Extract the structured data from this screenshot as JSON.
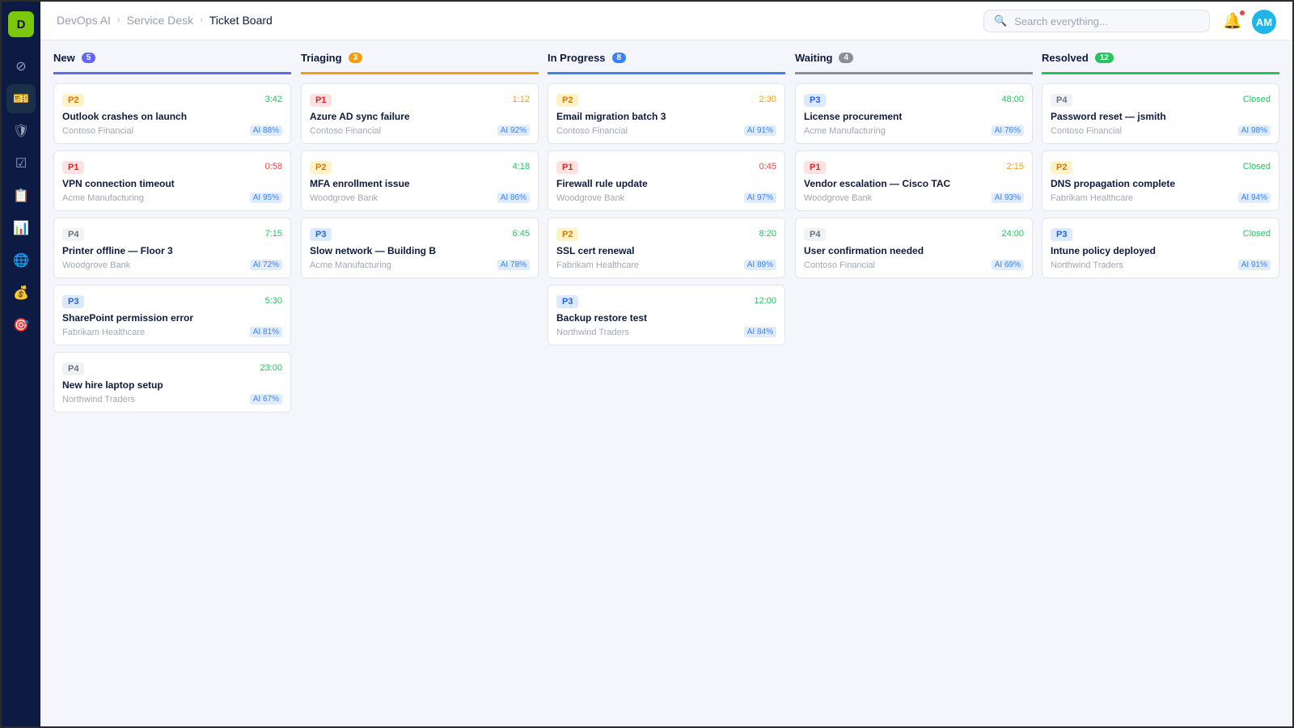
{
  "app": {
    "logo_letter": "D"
  },
  "breadcrumb": [
    "DevOps AI",
    "Service Desk",
    "Ticket Board"
  ],
  "search": {
    "placeholder": "Search everything..."
  },
  "user": {
    "initials": "AM"
  },
  "sidebar": {
    "items": [
      {
        "icon": "⊘",
        "name": "dashboard"
      },
      {
        "icon": "🎫",
        "name": "tickets",
        "active": true
      },
      {
        "icon": "🛡",
        "name": "security"
      },
      {
        "icon": "☑",
        "name": "tasks"
      },
      {
        "icon": "📋",
        "name": "clipboard"
      },
      {
        "icon": "📊",
        "name": "reports"
      },
      {
        "icon": "🌐",
        "name": "network"
      },
      {
        "icon": "💰",
        "name": "billing"
      },
      {
        "icon": "🎯",
        "name": "goals"
      }
    ]
  },
  "colors": {
    "timer_ok": "#22c55e",
    "timer_warn": "#f59e0b",
    "timer_crit": "#ef4444"
  },
  "columns": [
    {
      "name": "New",
      "count": "5",
      "color": "#6366f1",
      "cards": [
        {
          "priority": "P2",
          "timer": "3:42",
          "status": "ok",
          "title": "Outlook crashes on launch",
          "client": "Contoso Financial",
          "ai": "AI 88%"
        },
        {
          "priority": "P1",
          "timer": "0:58",
          "status": "crit",
          "title": "VPN connection timeout",
          "client": "Acme Manufacturing",
          "ai": "AI 95%"
        },
        {
          "priority": "P4",
          "timer": "7:15",
          "status": "ok",
          "title": "Printer offline — Floor 3",
          "client": "Woodgrove Bank",
          "ai": "AI 72%"
        },
        {
          "priority": "P3",
          "timer": "5:30",
          "status": "ok",
          "title": "SharePoint permission error",
          "client": "Fabrikam Healthcare",
          "ai": "AI 81%"
        },
        {
          "priority": "P4",
          "timer": "23:00",
          "status": "ok",
          "title": "New hire laptop setup",
          "client": "Northwind Traders",
          "ai": "AI 67%"
        }
      ]
    },
    {
      "name": "Triaging",
      "count": "3",
      "color": "#f59e0b",
      "cards": [
        {
          "priority": "P1",
          "timer": "1:12",
          "status": "warn",
          "title": "Azure AD sync failure",
          "client": "Contoso Financial",
          "ai": "AI 92%"
        },
        {
          "priority": "P2",
          "timer": "4:18",
          "status": "ok",
          "title": "MFA enrollment issue",
          "client": "Woodgrove Bank",
          "ai": "AI 86%"
        },
        {
          "priority": "P3",
          "timer": "6:45",
          "status": "ok",
          "title": "Slow network — Building B",
          "client": "Acme Manufacturing",
          "ai": "AI 78%"
        }
      ]
    },
    {
      "name": "In Progress",
      "count": "8",
      "color": "#3b82f6",
      "cards": [
        {
          "priority": "P2",
          "timer": "2:30",
          "status": "warn",
          "title": "Email migration batch 3",
          "client": "Contoso Financial",
          "ai": "AI 91%"
        },
        {
          "priority": "P1",
          "timer": "0:45",
          "status": "crit",
          "title": "Firewall rule update",
          "client": "Woodgrove Bank",
          "ai": "AI 97%"
        },
        {
          "priority": "P2",
          "timer": "8:20",
          "status": "ok",
          "title": "SSL cert renewal",
          "client": "Fabrikam Healthcare",
          "ai": "AI 89%"
        },
        {
          "priority": "P3",
          "timer": "12:00",
          "status": "ok",
          "title": "Backup restore test",
          "client": "Northwind Traders",
          "ai": "AI 84%"
        }
      ]
    },
    {
      "name": "Waiting",
      "count": "4",
      "color": "#8b8f99",
      "cards": [
        {
          "priority": "P3",
          "timer": "48:00",
          "status": "ok",
          "title": "License procurement",
          "client": "Acme Manufacturing",
          "ai": "AI 76%"
        },
        {
          "priority": "P1",
          "timer": "2:15",
          "status": "warn",
          "title": "Vendor escalation — Cisco TAC",
          "client": "Woodgrove Bank",
          "ai": "AI 93%"
        },
        {
          "priority": "P4",
          "timer": "24:00",
          "status": "ok",
          "title": "User confirmation needed",
          "client": "Contoso Financial",
          "ai": "AI 69%"
        }
      ]
    },
    {
      "name": "Resolved",
      "count": "12",
      "color": "#22c55e",
      "cards": [
        {
          "priority": "P4",
          "timer": "Closed",
          "status": "ok",
          "title": "Password reset — jsmith",
          "client": "Contoso Financial",
          "ai": "AI 98%"
        },
        {
          "priority": "P2",
          "timer": "Closed",
          "status": "ok",
          "title": "DNS propagation complete",
          "client": "Fabrikam Healthcare",
          "ai": "AI 94%"
        },
        {
          "priority": "P3",
          "timer": "Closed",
          "status": "ok",
          "title": "Intune policy deployed",
          "client": "Northwind Traders",
          "ai": "AI 91%"
        }
      ]
    }
  ]
}
